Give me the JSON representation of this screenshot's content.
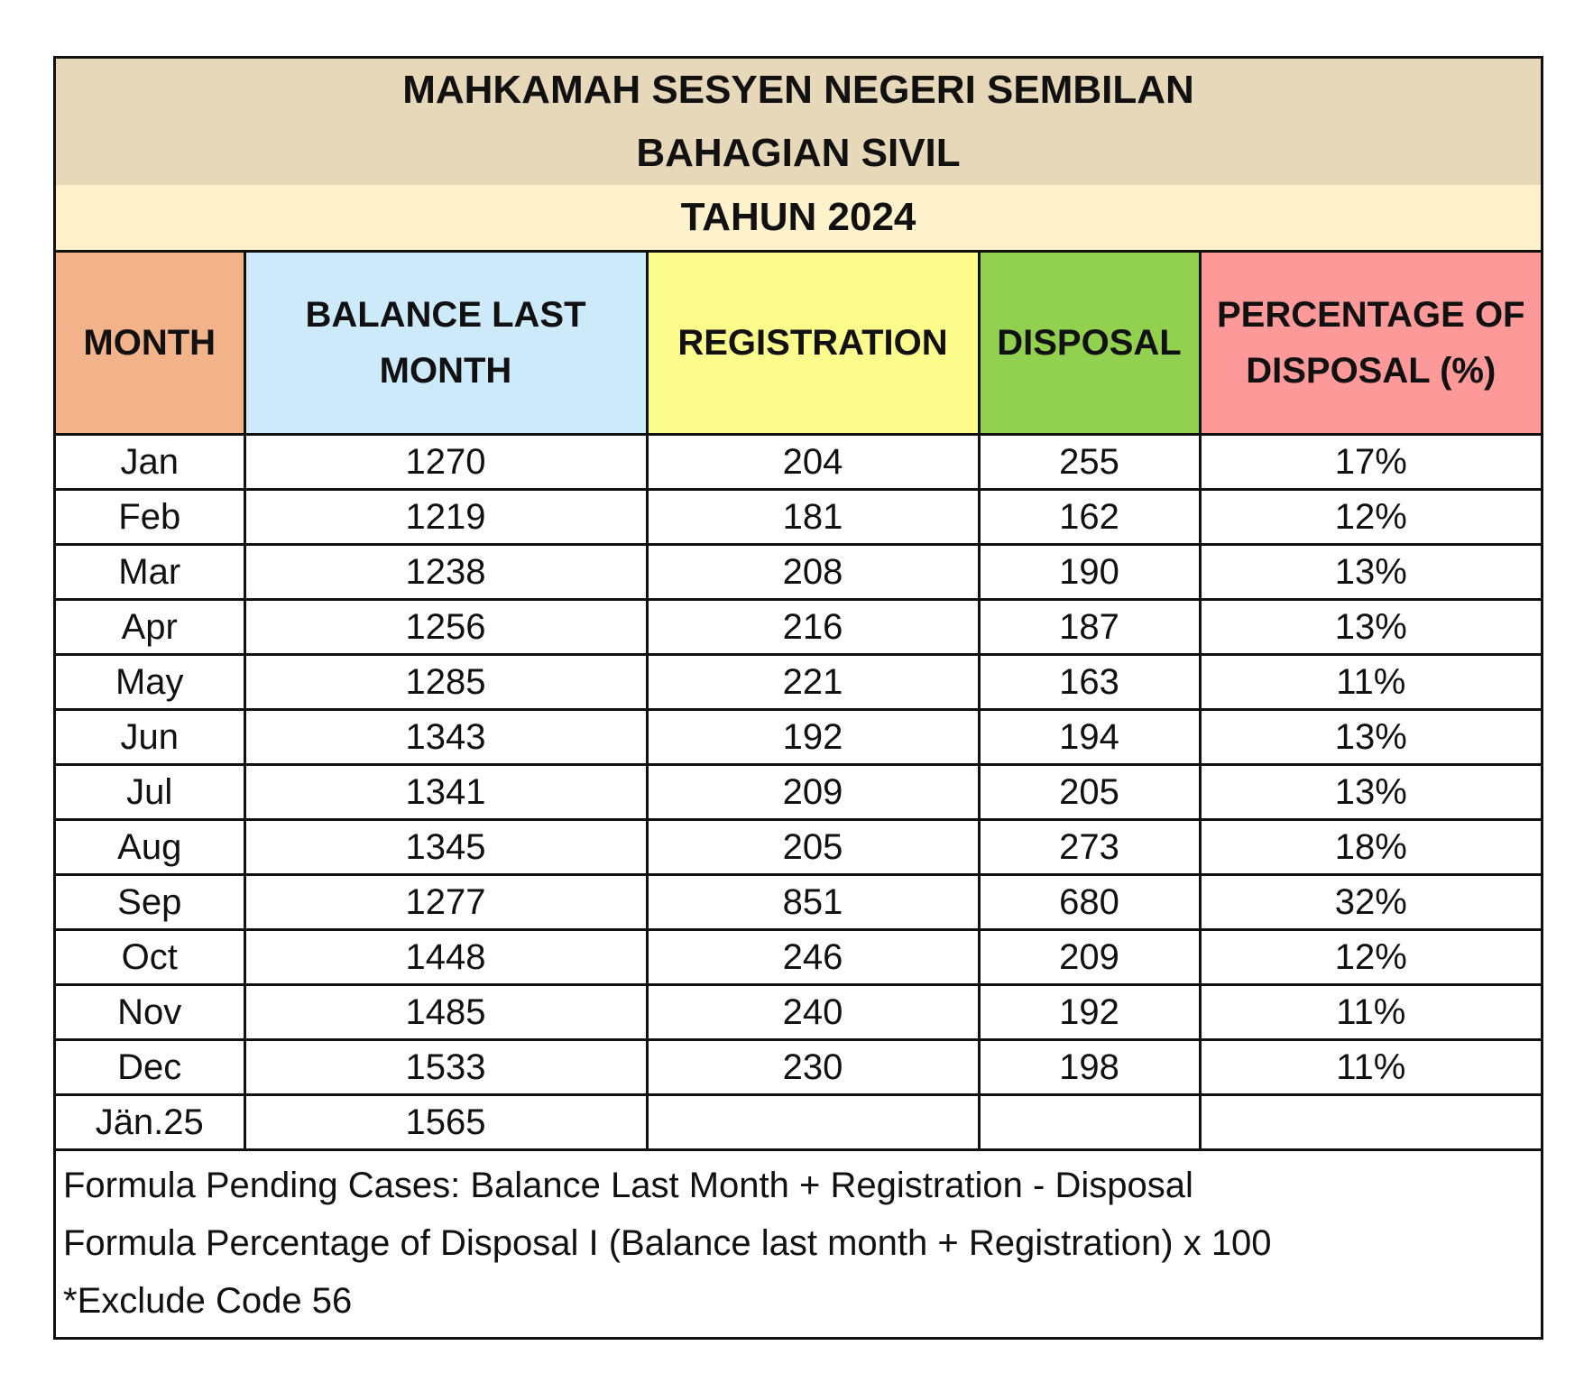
{
  "title": {
    "line1": "MAHKAMAH SESYEN NEGERI SEMBILAN",
    "line2": "BAHAGIAN SIVIL",
    "year": "TAHUN 2024"
  },
  "colors": {
    "title_bg": "#e6d8b8",
    "year_bg": "#fdf2cc",
    "month": "#f2b28a",
    "balance": "#cdeafb",
    "registration": "#fcfc8c",
    "disposal": "#92d050",
    "percentage": "#fe9999"
  },
  "headers": [
    "MONTH",
    "BALANCE LAST MONTH",
    "REGISTRATION",
    "DISPOSAL",
    "PERCENTAGE OF DISPOSAL (%)"
  ],
  "rows": [
    [
      "Jan",
      "1270",
      "204",
      "255",
      "17%"
    ],
    [
      "Feb",
      "1219",
      "181",
      "162",
      "12%"
    ],
    [
      "Mar",
      "1238",
      "208",
      "190",
      "13%"
    ],
    [
      "Apr",
      "1256",
      "216",
      "187",
      "13%"
    ],
    [
      "May",
      "1285",
      "221",
      "163",
      "11%"
    ],
    [
      "Jun",
      "1343",
      "192",
      "194",
      "13%"
    ],
    [
      "Jul",
      "1341",
      "209",
      "205",
      "13%"
    ],
    [
      "Aug",
      "1345",
      "205",
      "273",
      "18%"
    ],
    [
      "Sep",
      "1277",
      "851",
      "680",
      "32%"
    ],
    [
      "Oct",
      "1448",
      "246",
      "209",
      "12%"
    ],
    [
      "Nov",
      "1485",
      "240",
      "192",
      "11%"
    ],
    [
      "Dec",
      "1533",
      "230",
      "198",
      "11%"
    ],
    [
      "Jän.25",
      "1565",
      "",
      "",
      ""
    ]
  ],
  "notes": [
    "Formula Pending Cases: Balance Last Month + Registration - Disposal",
    "Formula Percentage of Disposal I (Balance last month + Registration) x 100",
    "*Exclude Code 56"
  ]
}
